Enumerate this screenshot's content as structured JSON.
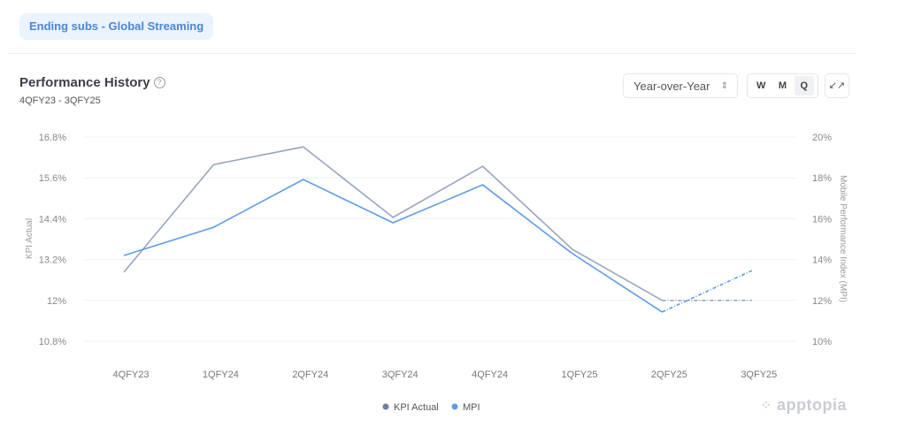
{
  "metric_pill": "Ending subs - Global Streaming",
  "header": {
    "title": "Performance History",
    "help_icon": "?",
    "range": "4QFY23 - 3QFY25"
  },
  "controls": {
    "comparison": "Year-over-Year",
    "granularity": [
      "W",
      "M",
      "Q"
    ],
    "selected_granularity": "Q"
  },
  "brand": "apptopia",
  "colors": {
    "kpi": "#9aa5bf",
    "mpi": "#5e9be6"
  },
  "chart_data": {
    "type": "line",
    "title": "Performance History",
    "categories": [
      "4QFY23",
      "1QFY24",
      "2QFY24",
      "3QFY24",
      "4QFY24",
      "1QFY25",
      "2QFY25",
      "3QFY25"
    ],
    "ylabel": "KPI Actual",
    "y2label": "Mobile Performance Index (MPI)",
    "yticks": [
      "10.8%",
      "12%",
      "13.2%",
      "14.4%",
      "15.6%",
      "16.8%"
    ],
    "y2ticks": [
      "10%",
      "12%",
      "14%",
      "16%",
      "18%",
      "20%"
    ],
    "ylim": [
      10.8,
      16.8
    ],
    "y2lim": [
      10,
      20
    ],
    "series": [
      {
        "name": "KPI Actual",
        "axis": "left",
        "values": [
          12.83,
          15.99,
          16.51,
          14.44,
          15.94,
          13.5,
          12.0,
          12.0
        ],
        "dashed_from_index": 6
      },
      {
        "name": "MPI",
        "axis": "right",
        "values": [
          14.2,
          15.58,
          17.92,
          15.8,
          17.66,
          14.29,
          11.43,
          13.46
        ],
        "dashed_from_index": 6
      }
    ],
    "legend": "bottom-center",
    "grid": true
  }
}
